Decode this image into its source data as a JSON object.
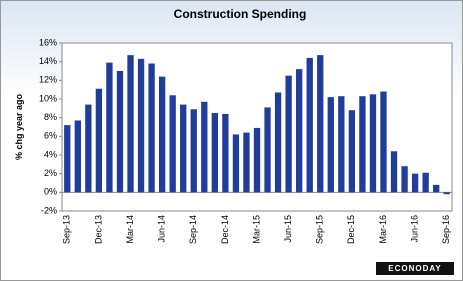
{
  "chart_data": {
    "type": "bar",
    "title": "Construction  Spending",
    "y_label": "% chg year ago",
    "logo": "ECONODAY",
    "categories": [
      "Sep-13",
      null,
      null,
      "Dec-13",
      null,
      null,
      "Mar-14",
      null,
      null,
      "Jun-14",
      null,
      null,
      "Sep-14",
      null,
      null,
      "Dec-14",
      null,
      null,
      "Mar-15",
      null,
      null,
      "Jun-15",
      null,
      null,
      "Sep-15",
      null,
      null,
      "Dec-15",
      null,
      null,
      "Mar-16",
      null,
      null,
      "Jun-16",
      null,
      null,
      "Sep-16"
    ],
    "values": [
      7.2,
      7.7,
      9.4,
      11.1,
      13.9,
      13.0,
      14.7,
      14.3,
      13.8,
      12.4,
      10.4,
      9.4,
      8.9,
      9.7,
      8.5,
      8.4,
      6.2,
      6.4,
      6.9,
      9.1,
      10.7,
      12.5,
      13.2,
      14.4,
      14.7,
      10.2,
      10.3,
      8.8,
      10.3,
      10.5,
      10.8,
      4.4,
      2.8,
      2.0,
      2.1,
      0.8,
      -0.2
    ],
    "color": "#1f3d99",
    "ylim": [
      -2,
      16
    ],
    "yticks": [
      {
        "value": -2,
        "label": "-2%"
      },
      {
        "value": 0,
        "label": "0%"
      },
      {
        "value": 2,
        "label": "2%"
      },
      {
        "value": 4,
        "label": "4%"
      },
      {
        "value": 6,
        "label": "6%"
      },
      {
        "value": 8,
        "label": "8%"
      },
      {
        "value": 10,
        "label": "10%"
      },
      {
        "value": 12,
        "label": "12%"
      },
      {
        "value": 14,
        "label": "14%"
      },
      {
        "value": 16,
        "label": "16%"
      }
    ],
    "grid": false
  }
}
